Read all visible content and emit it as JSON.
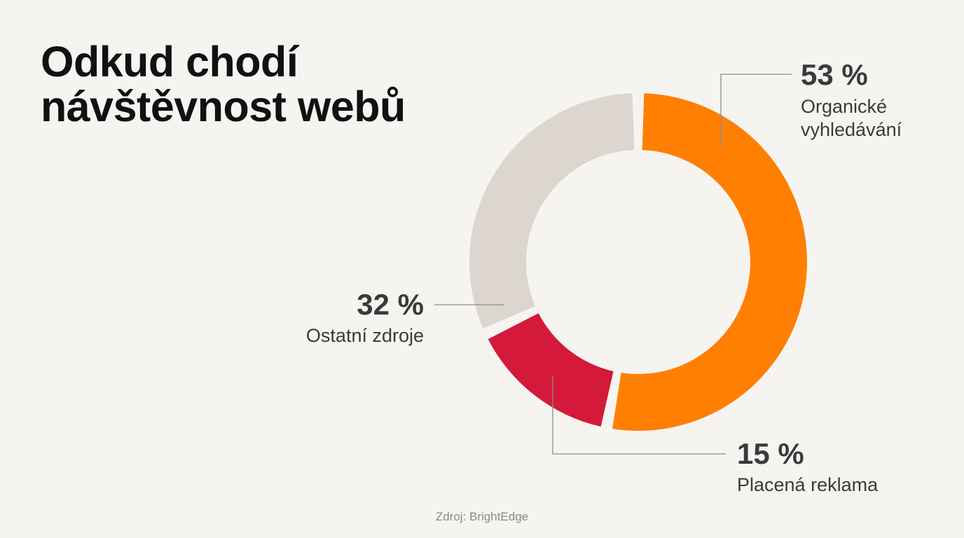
{
  "title_lines": [
    "Odkud chodí",
    "návštěvnost webů"
  ],
  "source": "Zdroj: BrightEdge",
  "colors": {
    "organic": "#ff7f00",
    "paid": "#d4193a",
    "other": "#dcd6cf",
    "leader": "#8c8c8c"
  },
  "chart_data": {
    "type": "pie",
    "variant": "donut",
    "title": "Odkud chodí návštěvnost webů",
    "unit": "%",
    "start": "top, clockwise",
    "slices": [
      {
        "label": "Organické vyhledávání",
        "label_lines": [
          "Organické",
          "vyhledávání"
        ],
        "value": 53,
        "value_label": "53 %",
        "color": "#ff7f00"
      },
      {
        "label": "Placená reklama",
        "label_lines": [
          "Placená reklama"
        ],
        "value": 15,
        "value_label": "15 %",
        "color": "#d4193a"
      },
      {
        "label": "Ostatní zdroje",
        "label_lines": [
          "Ostatní zdroje"
        ],
        "value": 32,
        "value_label": "32 %",
        "color": "#dcd6cf"
      }
    ]
  }
}
